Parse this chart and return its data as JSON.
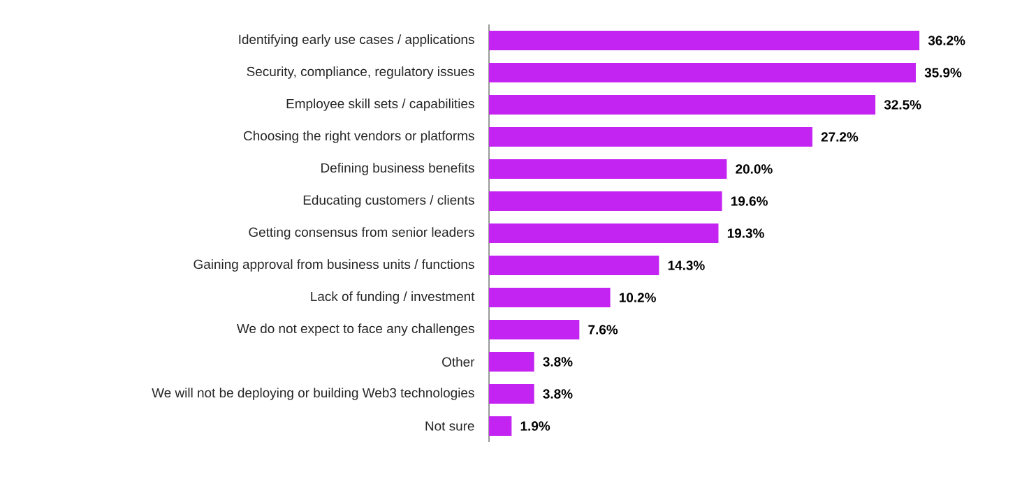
{
  "chart_data": {
    "type": "bar",
    "orientation": "horizontal",
    "color": "#c424f2",
    "categories": [
      "Identifying early use cases / applications",
      "Security, compliance, regulatory issues",
      "Employee skill sets / capabilities",
      "Choosing the right vendors or platforms",
      "Defining business benefits",
      "Educating customers / clients",
      "Getting consensus from senior leaders",
      "Gaining approval from business units / functions",
      "Lack of funding / investment",
      "We do not expect to face any challenges",
      "Other",
      "We will not be deploying or building Web3 technologies",
      "Not sure"
    ],
    "values": [
      36.2,
      35.9,
      32.5,
      27.2,
      20.0,
      19.6,
      19.3,
      14.3,
      10.2,
      7.6,
      3.8,
      3.8,
      1.9
    ],
    "value_labels": [
      "36.2%",
      "35.9%",
      "32.5%",
      "27.2%",
      "20.0%",
      "19.6%",
      "19.3%",
      "14.3%",
      "10.2%",
      "7.6%",
      "3.8%",
      "3.8%",
      "1.9%"
    ]
  }
}
